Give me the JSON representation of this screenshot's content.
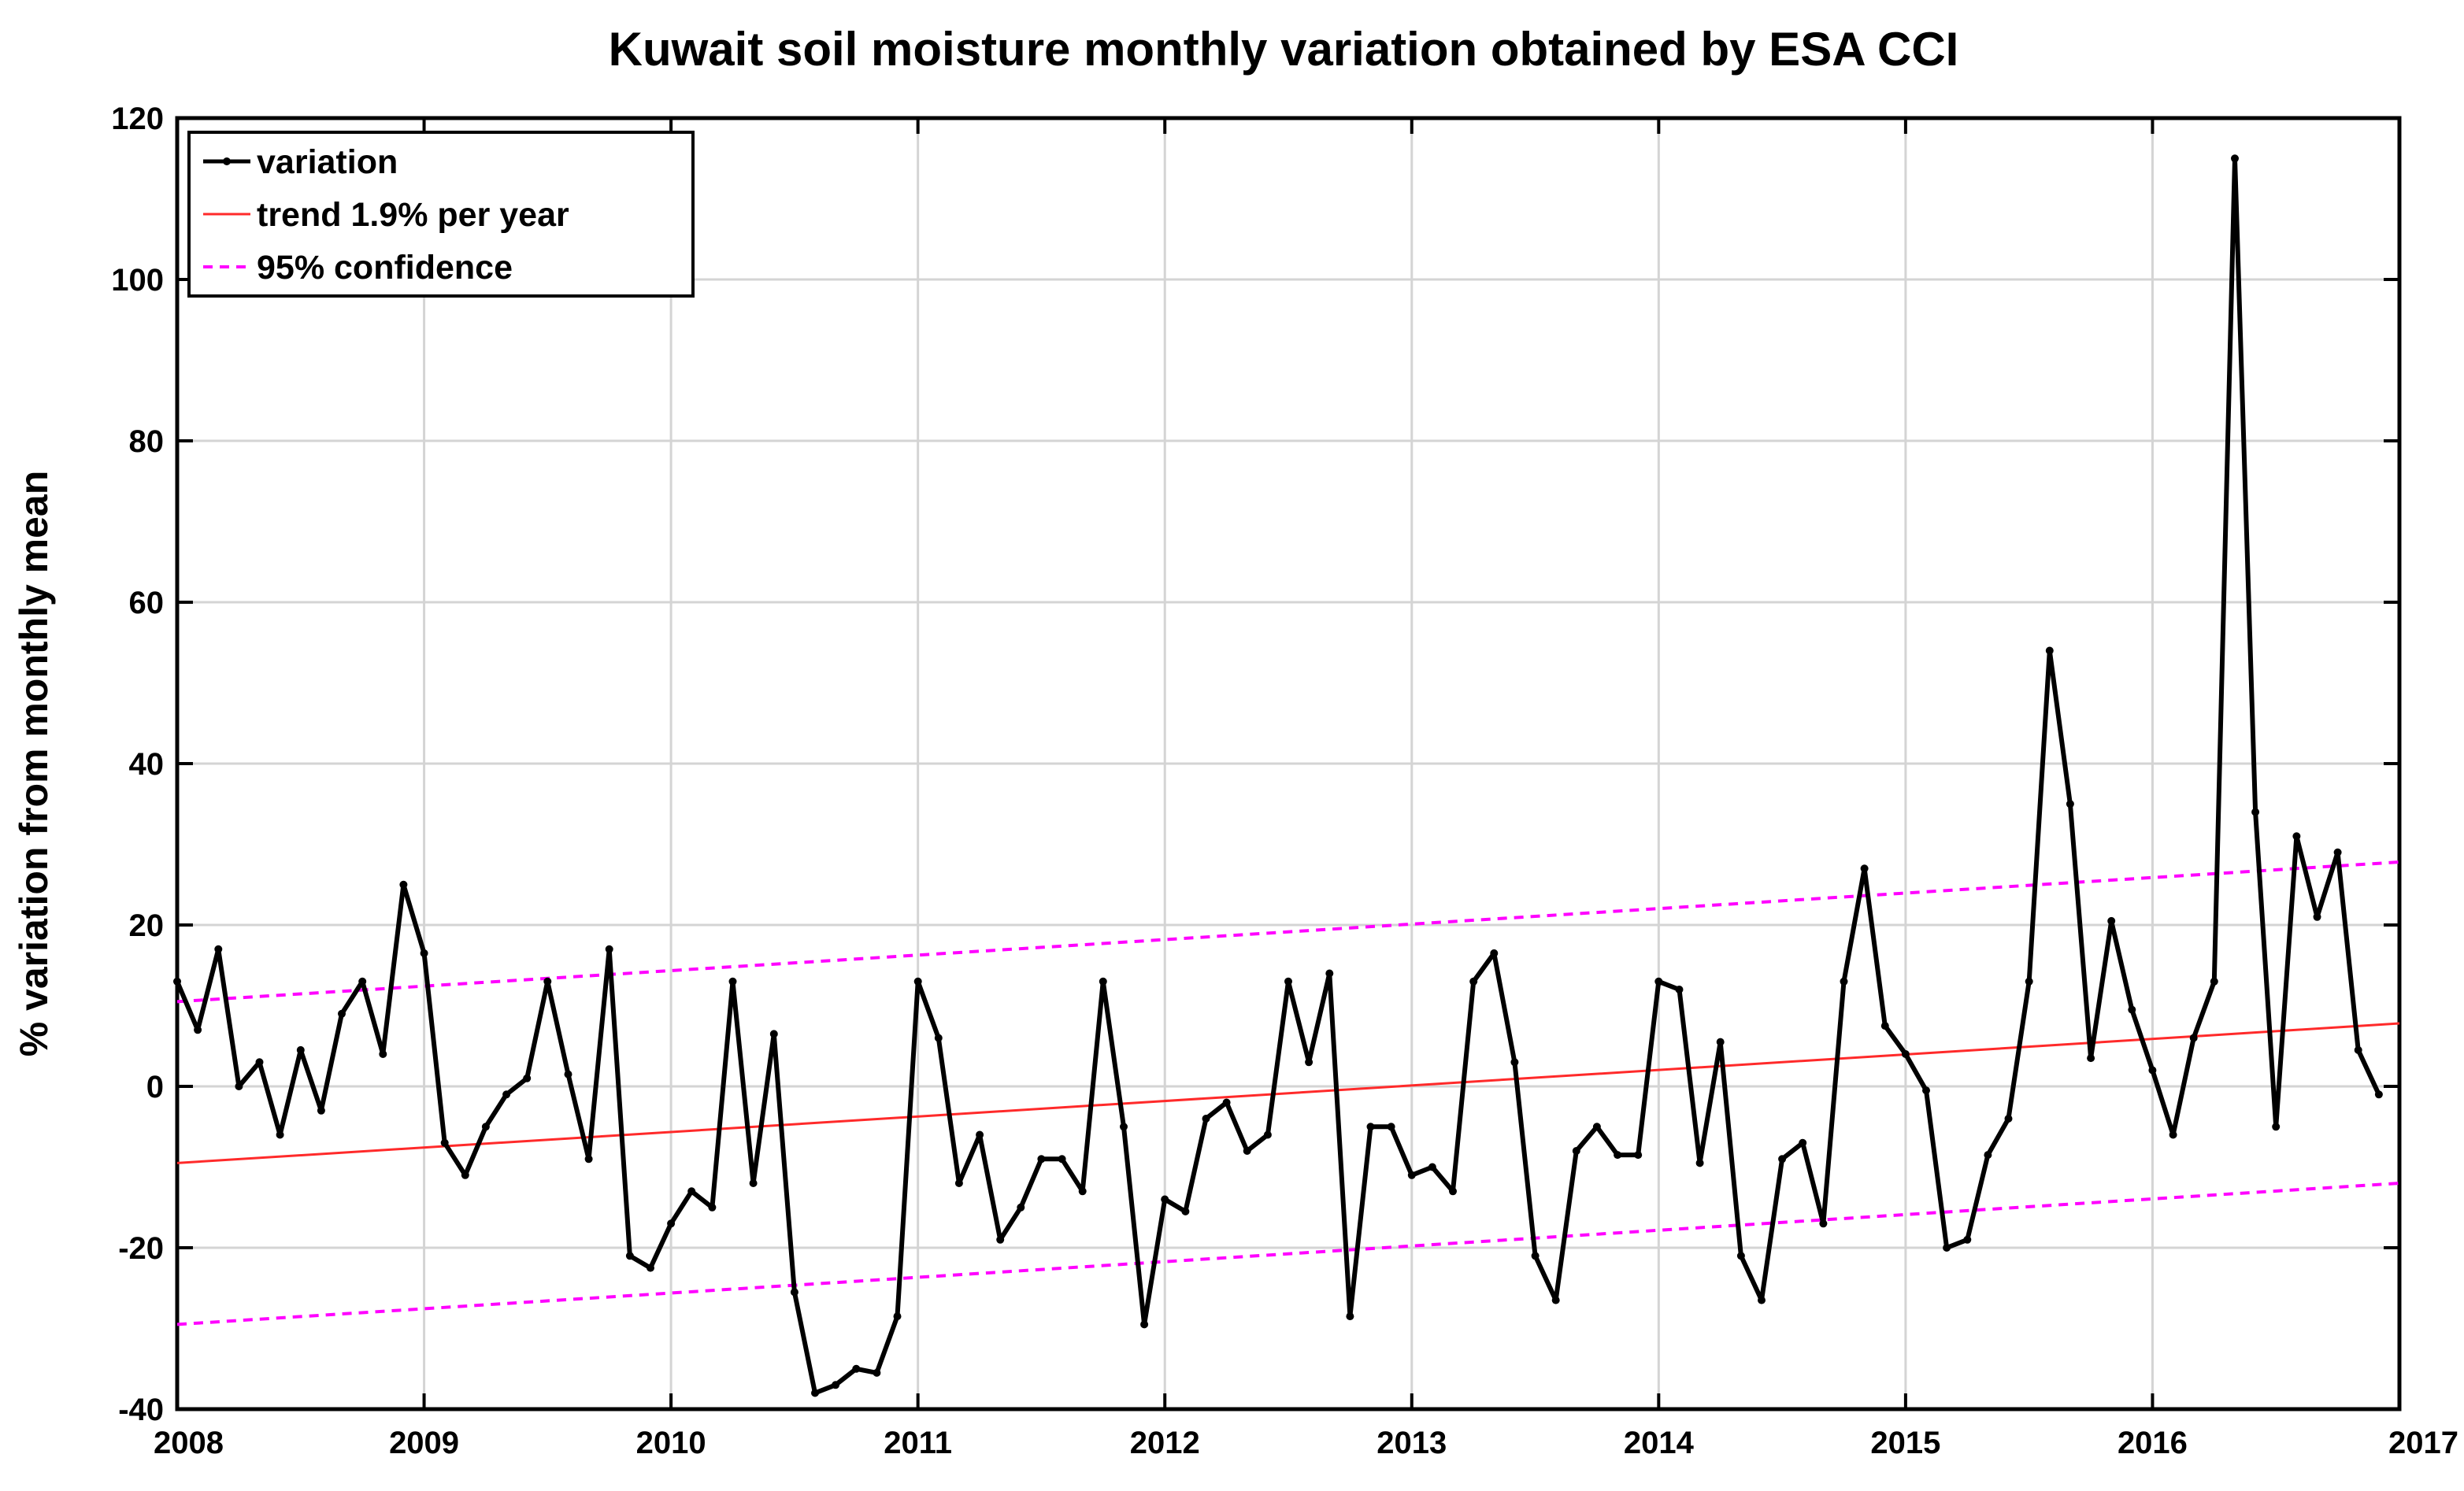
{
  "chart_data": {
    "type": "line",
    "title": "Kuwait soil moisture monthly variation obtained by ESA CCI",
    "xlabel": "",
    "ylabel": "% variation from monthly mean",
    "xlim": [
      2008,
      2017
    ],
    "ylim": [
      -40,
      120
    ],
    "x_ticks": [
      "2008",
      "2009",
      "2010",
      "2011",
      "2012",
      "2013",
      "2014",
      "2015",
      "2016",
      "2017"
    ],
    "y_ticks": [
      "-40",
      "-20",
      "0",
      "20",
      "40",
      "60",
      "80",
      "100",
      "120"
    ],
    "grid": true,
    "legend_position": "top-left",
    "legend": [
      "variation",
      "trend 1.9% per year",
      "95% confidence"
    ],
    "colors": {
      "variation": "#000000",
      "trend": "#ff2a2a",
      "confidence": "#ff00ff"
    },
    "series": [
      {
        "name": "variation",
        "start_year": 2008,
        "step_months": 1,
        "values": [
          13,
          7,
          17,
          0,
          3,
          -6,
          4.5,
          -3,
          9,
          13,
          4,
          25,
          16.5,
          -7,
          -11,
          -5,
          -1,
          1,
          13,
          1.5,
          -9,
          17,
          -21,
          -22.5,
          -17,
          -13,
          -15,
          13,
          -12,
          6.5,
          -25.5,
          -38,
          -37,
          -35,
          -35.5,
          -28.5,
          13,
          6,
          -12,
          -6,
          -19,
          -15,
          -9,
          -9,
          -13,
          13,
          -5,
          -29.5,
          -14,
          -15.5,
          -4,
          -2,
          -8,
          -6,
          13,
          3,
          14,
          -28.5,
          -5,
          -5,
          -11,
          -10,
          -13,
          13,
          16.5,
          3,
          -21,
          -26.5,
          -8,
          -5,
          -8.5,
          -8.5,
          13,
          12,
          -9.5,
          5.5,
          -21,
          -26.5,
          -9,
          -7,
          -17,
          13,
          27,
          7.5,
          4,
          -0.5,
          -20,
          -19,
          -8.5,
          -4,
          13,
          54,
          35,
          3.5,
          20.5,
          9.5,
          2,
          -6,
          6,
          13,
          115,
          34,
          -5,
          31,
          21,
          29,
          4.5,
          -1
        ]
      },
      {
        "name": "trend 1.9% per year",
        "x": [
          2008,
          2017
        ],
        "y": [
          -9.5,
          7.8
        ]
      },
      {
        "name": "95% confidence upper",
        "x": [
          2008,
          2017
        ],
        "y": [
          10.5,
          27.8
        ]
      },
      {
        "name": "95% confidence lower",
        "x": [
          2008,
          2017
        ],
        "y": [
          -29.5,
          -12
        ]
      }
    ]
  }
}
